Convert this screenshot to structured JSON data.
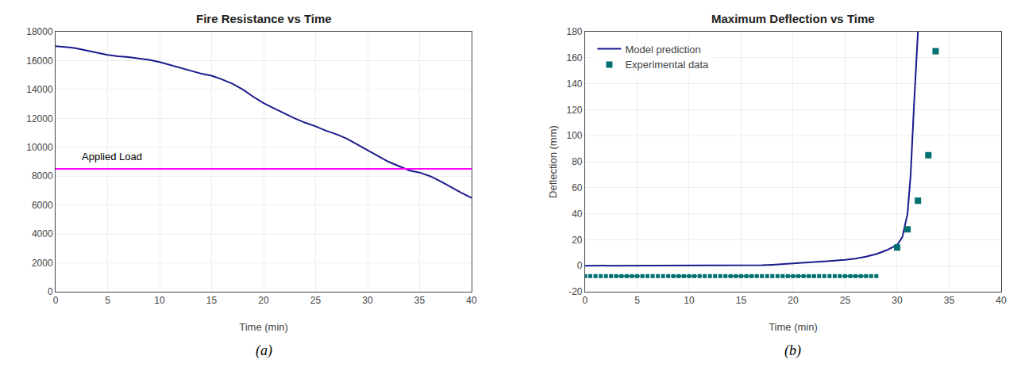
{
  "chart_data": [
    {
      "type": "line",
      "title": "Fire Resistance vs Time",
      "xlabel": "Time (min)",
      "caption": "(a)",
      "xlim": [
        0,
        40
      ],
      "ylim": [
        0,
        18000
      ],
      "xticks": [
        0,
        5,
        10,
        15,
        20,
        25,
        30,
        35,
        40
      ],
      "yticks": [
        0,
        2000,
        4000,
        6000,
        8000,
        10000,
        12000,
        14000,
        16000,
        18000
      ],
      "grid": true,
      "series": [
        {
          "color": "#1a1a8c",
          "x": [
            0,
            0.5,
            1,
            1.5,
            2,
            3,
            4,
            5,
            6,
            7,
            8,
            9,
            10,
            11,
            12,
            13,
            14,
            15,
            16,
            17,
            18,
            19,
            20,
            21,
            22,
            23,
            24,
            25,
            26,
            27,
            28,
            29,
            30,
            31,
            32,
            33,
            34,
            35,
            36,
            37,
            38,
            39,
            40
          ],
          "values": [
            17000,
            16980,
            16950,
            16900,
            16850,
            16700,
            16550,
            16400,
            16300,
            16250,
            16150,
            16050,
            15900,
            15700,
            15500,
            15300,
            15100,
            14950,
            14700,
            14400,
            14000,
            13500,
            13050,
            12700,
            12350,
            12000,
            11700,
            11450,
            11150,
            10900,
            10600,
            10200,
            9800,
            9400,
            9000,
            8700,
            8400,
            8250,
            8000,
            7650,
            7250,
            6850,
            6500
          ]
        }
      ],
      "reference_lines": [
        {
          "value": 8500,
          "label": "Applied Load",
          "color": "#ff00ff"
        }
      ]
    },
    {
      "type": "line",
      "title": "Maximum Deflection vs Time",
      "xlabel": "Time (min)",
      "ylabel": "Deflection (mm)",
      "caption": "(b)",
      "xlim": [
        0,
        40
      ],
      "ylim": [
        -20,
        180
      ],
      "xticks": [
        0,
        5,
        10,
        15,
        20,
        25,
        30,
        35,
        40
      ],
      "yticks": [
        -20,
        0,
        20,
        40,
        60,
        80,
        100,
        120,
        140,
        160,
        180
      ],
      "grid": true,
      "legend": "upper left",
      "series": [
        {
          "name": "Model prediction",
          "type": "line",
          "color": "#1a1a8c",
          "x": [
            0,
            2,
            4,
            6,
            8,
            10,
            12,
            14,
            16,
            17,
            18,
            19,
            20,
            21,
            22,
            23,
            24,
            25,
            26,
            27,
            28,
            29,
            30,
            30.5,
            31,
            31.3,
            31.6,
            32.0
          ],
          "values": [
            0,
            0,
            0,
            0,
            0,
            0,
            0,
            0,
            0.2,
            0.4,
            0.8,
            1.2,
            1.8,
            2.2,
            2.8,
            3.3,
            3.8,
            4.5,
            5.5,
            7,
            9,
            12,
            16,
            22,
            40,
            70,
            120,
            180
          ]
        },
        {
          "type": "line",
          "line_style": "dotted",
          "marker": "square",
          "color": "#007070",
          "x": [
            0.0,
            0.5,
            1.0,
            1.5,
            2.0,
            2.5,
            3.0,
            3.5,
            4.0,
            4.5,
            5.0,
            5.5,
            6.0,
            6.5,
            7.0,
            7.5,
            8.0,
            8.5,
            9.0,
            9.5,
            10.0,
            10.5,
            11.0,
            11.5,
            12.0,
            12.5,
            13.0,
            13.5,
            14.0,
            14.5,
            15.0,
            15.5,
            16.0,
            16.5,
            17.0,
            17.5,
            18.0,
            18.5,
            19.0,
            19.5,
            20.0,
            20.5,
            21.0,
            21.5,
            22.0,
            22.5,
            23.0,
            23.5,
            24.0,
            24.5,
            25.0,
            25.5,
            26.0,
            26.5,
            27.0,
            27.5,
            28.0
          ],
          "values": [
            -8,
            -8,
            -8,
            -8,
            -8,
            -8,
            -8,
            -8,
            -8,
            -8,
            -8,
            -8,
            -8,
            -8,
            -8,
            -8,
            -8,
            -8,
            -8,
            -8,
            -8,
            -8,
            -8,
            -8,
            -8,
            -8,
            -8,
            -8,
            -8,
            -8,
            -8,
            -8,
            -8,
            -8,
            -8,
            -8,
            -8,
            -8,
            -8,
            -8,
            -8,
            -8,
            -8,
            -8,
            -8,
            -8,
            -8,
            -8,
            -8,
            -8,
            -8,
            -8,
            -8,
            -8,
            -8,
            -8,
            -8
          ]
        },
        {
          "name": "Experimental data",
          "type": "scatter",
          "marker": "square",
          "color": "#007070",
          "x": [
            30,
            31,
            32,
            33,
            33.7
          ],
          "values": [
            14,
            28,
            50,
            85,
            165
          ]
        }
      ]
    }
  ]
}
